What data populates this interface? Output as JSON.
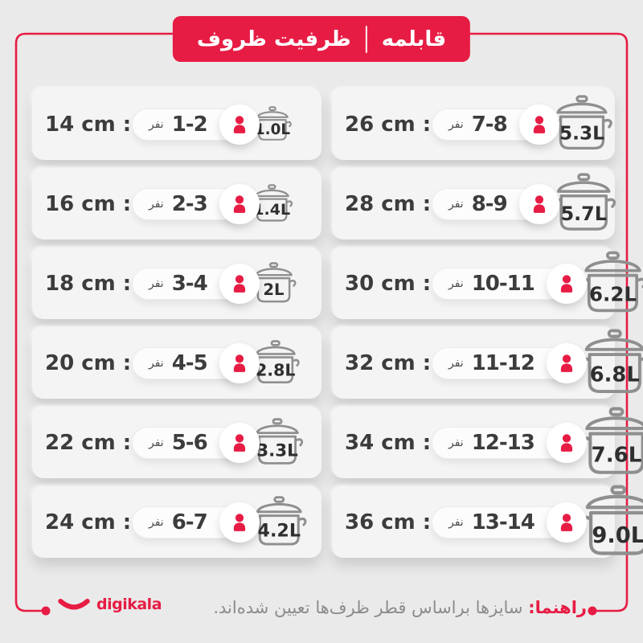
{
  "colors": {
    "accent": "#e71c44",
    "page_bg": "#eaeaea",
    "card_bg": "#f4f4f4",
    "pot_stroke": "#8f8f8f",
    "pot_text": "#2f2f2f",
    "dark_text": "#3c3c3c",
    "muted_text": "#8c8c8c"
  },
  "header": {
    "product": "قابلمه",
    "category": "ظرفیت ظروف"
  },
  "table": {
    "unit_people": "نفر",
    "left_column": [
      {
        "size": "14 cm :",
        "people": "1-2",
        "capacity": "1.0L"
      },
      {
        "size": "16 cm :",
        "people": "2-3",
        "capacity": "1.4L"
      },
      {
        "size": "18 cm :",
        "people": "3-4",
        "capacity": "2L"
      },
      {
        "size": "20 cm :",
        "people": "4-5",
        "capacity": "2.8L"
      },
      {
        "size": "22 cm :",
        "people": "5-6",
        "capacity": "3.3L"
      },
      {
        "size": "24 cm :",
        "people": "6-7",
        "capacity": "4.2L"
      }
    ],
    "right_column": [
      {
        "size": "26 cm :",
        "people": "7-8",
        "capacity": "5.3L"
      },
      {
        "size": "28 cm :",
        "people": "8-9",
        "capacity": "5.7L"
      },
      {
        "size": "30 cm :",
        "people": "10-11",
        "capacity": "6.2L"
      },
      {
        "size": "32 cm :",
        "people": "11-12",
        "capacity": "6.8L"
      },
      {
        "size": "34 cm :",
        "people": "12-13",
        "capacity": "7.6L"
      },
      {
        "size": "36 cm :",
        "people": "13-14",
        "capacity": "9.0L"
      }
    ]
  },
  "chart_data": {
    "type": "table",
    "title": "قابلمه | ظرفیت ظروف",
    "rows": [
      {
        "size_cm": 14,
        "people": "1-2",
        "capacity_liters": 1.0
      },
      {
        "size_cm": 16,
        "people": "2-3",
        "capacity_liters": 1.4
      },
      {
        "size_cm": 18,
        "people": "3-4",
        "capacity_liters": 2.0
      },
      {
        "size_cm": 20,
        "people": "4-5",
        "capacity_liters": 2.8
      },
      {
        "size_cm": 22,
        "people": "5-6",
        "capacity_liters": 3.3
      },
      {
        "size_cm": 24,
        "people": "6-7",
        "capacity_liters": 4.2
      },
      {
        "size_cm": 26,
        "people": "7-8",
        "capacity_liters": 5.3
      },
      {
        "size_cm": 28,
        "people": "8-9",
        "capacity_liters": 5.7
      },
      {
        "size_cm": 30,
        "people": "10-11",
        "capacity_liters": 6.2
      },
      {
        "size_cm": 32,
        "people": "11-12",
        "capacity_liters": 6.8
      },
      {
        "size_cm": 34,
        "people": "12-13",
        "capacity_liters": 7.6
      },
      {
        "size_cm": 36,
        "people": "13-14",
        "capacity_liters": 9.0
      }
    ]
  },
  "footer": {
    "guide_label": "راهنما:",
    "guide_text": " سایزها براساس قطر ظرف‌ها تعیین شده‌اند.",
    "brand": "digikala"
  }
}
